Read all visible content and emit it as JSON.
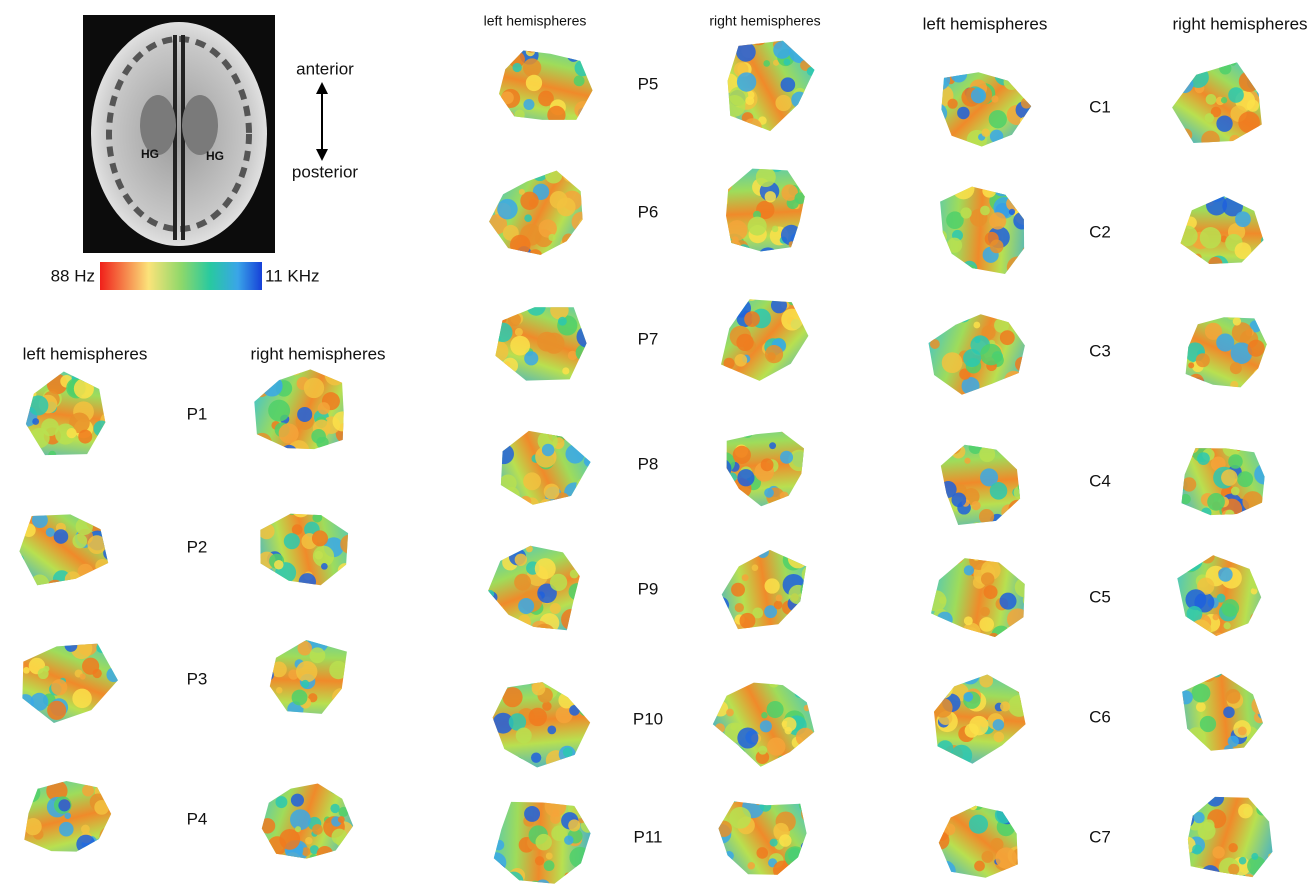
{
  "brain_image": {
    "labels": [
      "HG",
      "HG"
    ],
    "anterior": "anterior",
    "posterior": "posterior"
  },
  "colorbar": {
    "min_label": "88 Hz",
    "max_label": "11 KHz"
  },
  "panels": [
    {
      "headers": [
        "left hemispheres",
        "right hemispheres"
      ],
      "rows": [
        "P1",
        "P2",
        "P3",
        "P4"
      ]
    },
    {
      "headers": [
        "left hemispheres",
        "right hemispheres"
      ],
      "rows": [
        "P5",
        "P6",
        "P7",
        "P8",
        "P9",
        "P10",
        "P11"
      ]
    },
    {
      "headers": [
        "left hemispheres",
        "right hemispheres"
      ],
      "rows": [
        "C1",
        "C2",
        "C3",
        "C4",
        "C5",
        "C6",
        "C7"
      ]
    }
  ]
}
